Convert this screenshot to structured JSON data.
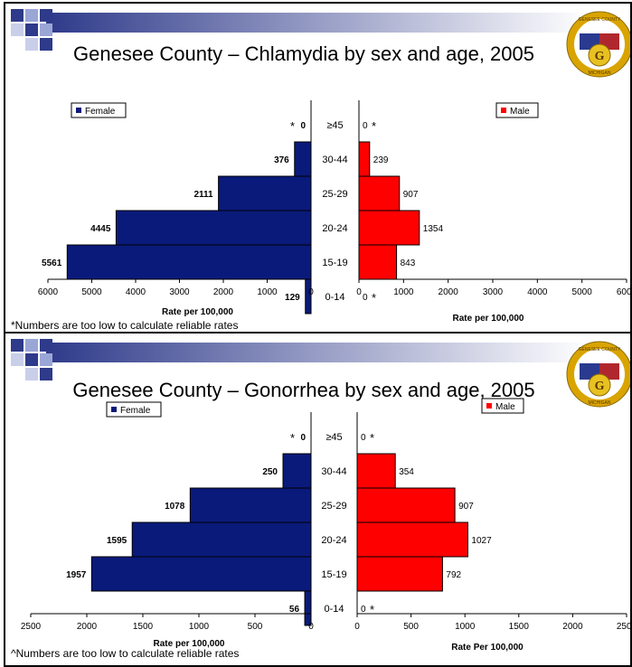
{
  "chart_data": [
    {
      "type": "bar",
      "title": "Genesee County – Chlamydia by sex and age, 2005",
      "categories": [
        "≥45",
        "30-44",
        "25-29",
        "20-24",
        "15-19",
        "0-14"
      ],
      "series": [
        {
          "name": "Female",
          "values": [
            0,
            376,
            2111,
            4445,
            5561,
            129
          ],
          "labels": [
            "0",
            "376",
            "2111",
            "4445",
            "5561",
            "129"
          ],
          "color": "#0a1a7a"
        },
        {
          "name": "Male",
          "values": [
            0,
            239,
            907,
            1354,
            843,
            0
          ],
          "labels": [
            "0",
            "239",
            "907",
            "1354",
            "843",
            "0"
          ],
          "color": "#ff0000"
        }
      ],
      "female_axis": {
        "ticks": [
          6000,
          5000,
          4000,
          3000,
          2000,
          1000,
          0
        ],
        "label": "Rate per 100,000",
        "max": 6000
      },
      "male_axis": {
        "ticks": [
          0,
          1000,
          2000,
          3000,
          4000,
          5000,
          6000
        ],
        "label": "Rate per 100,000",
        "max": 6000
      },
      "footnote": "*Numbers are too low to calculate reliable rates",
      "star": "*"
    },
    {
      "type": "bar",
      "title": "Genesee County – Gonorrhea by sex and age, 2005",
      "categories": [
        "≥45",
        "30-44",
        "25-29",
        "20-24",
        "15-19",
        "0-14"
      ],
      "series": [
        {
          "name": "Female",
          "values": [
            0,
            250,
            1078,
            1595,
            1957,
            56
          ],
          "labels": [
            "0",
            "250",
            "1078",
            "1595",
            "1957",
            "56"
          ],
          "color": "#0a1a7a"
        },
        {
          "name": "Male",
          "values": [
            0,
            354,
            907,
            1027,
            792,
            0
          ],
          "labels": [
            "0",
            "354",
            "907",
            "1027",
            "792",
            "0"
          ],
          "color": "#ff0000"
        }
      ],
      "female_axis": {
        "ticks": [
          2500,
          2000,
          1500,
          1000,
          500,
          0
        ],
        "label": "Rate per 100,000",
        "max": 2500
      },
      "male_axis": {
        "ticks": [
          0,
          500,
          1000,
          1500,
          2000,
          2500
        ],
        "label": "Rate Per 100,000",
        "max": 2500
      },
      "footnote": "^Numbers are too low to calculate reliable rates",
      "star": "*"
    }
  ],
  "seal": {
    "top_text": "GENESEE COUNTY",
    "bottom_text": "MICHIGAN",
    "letter": "G",
    "colors": {
      "ring": "#d9a400",
      "left": "#2a3a8f",
      "right": "#b0282e",
      "center": "#e8c020"
    }
  },
  "header_colors": {
    "gradient_start": "#2e3a8a",
    "gradient_end": "#ffffff"
  }
}
